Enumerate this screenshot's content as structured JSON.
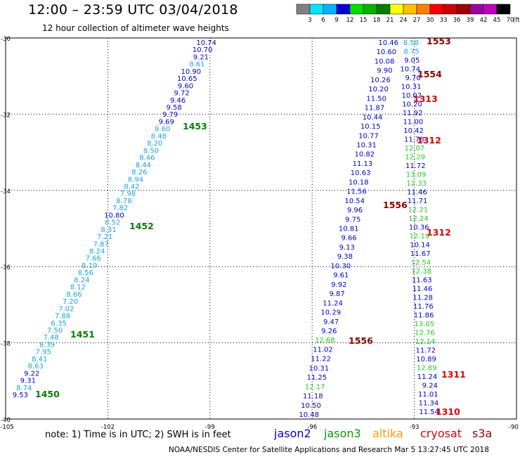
{
  "header": {
    "title": "12:00 – 23:59 UTC 03/04/2018",
    "subtitle": "12 hour collection of altimeter wave heights"
  },
  "colorbar": {
    "labels": [
      "3",
      "6",
      "9",
      "12",
      "15",
      "18",
      "21",
      "24",
      "27",
      "30",
      "33",
      "36",
      "39",
      "42",
      "45",
      "70",
      "(ft)"
    ],
    "colors": [
      "#808080",
      "#00e5ff",
      "#00b4ff",
      "#0000e0",
      "#00e000",
      "#00b400",
      "#008000",
      "#ffff00",
      "#ffc000",
      "#ff8000",
      "#ff0000",
      "#d00000",
      "#a00000",
      "#a000a0",
      "#c000c0",
      "#000000"
    ]
  },
  "axes": {
    "y_ticks": [
      "-30",
      "-32",
      "-34",
      "-36",
      "-38",
      "-40"
    ],
    "x_ticks": [
      "-105",
      "-102",
      "-99",
      "-96",
      "-93",
      "-90"
    ]
  },
  "tracks": [
    {
      "name": "left-track",
      "values": [
        "10.74",
        "10.70",
        "9.21",
        "8.61",
        "10.90",
        "10.65",
        "9.60",
        "9.72",
        "9.46",
        "9.58",
        "9.79",
        "9.69",
        "8.60",
        "8.48",
        "8.20",
        "8.50",
        "8.46",
        "8.44",
        "8.26",
        "8.94",
        "8.42",
        "7.98",
        "8.78",
        "7.82",
        "10.80",
        "8.52",
        "8.31",
        "7.21",
        "7.87",
        "8.24",
        "7.66",
        "8.19",
        "8.56",
        "8.24",
        "8.12",
        "8.66",
        "7.20",
        "7.02",
        "7.88",
        "6.35",
        "7.50",
        "7.48",
        "8.39",
        "7.95",
        "8.41",
        "8.63",
        "9.22",
        "9.31",
        "8.74",
        "9.53"
      ]
    },
    {
      "name": "middle-track",
      "values": [
        "10.46",
        "10.60",
        "10.08",
        "9.90",
        "10.26",
        "10.20",
        "11.50",
        "11.87",
        "10.44",
        "10.15",
        "10.77",
        "10.31",
        "10.82",
        "11.13",
        "10.63",
        "10.18",
        "11.56",
        "10.54",
        "9.96",
        "9.75",
        "10.81",
        "9.66",
        "9.13",
        "9.38",
        "10.30",
        "9.61",
        "9.92",
        "9.87",
        "11.24",
        "10.29",
        "9.47",
        "9.26",
        "12.68",
        "11.02",
        "11.22",
        "10.31",
        "11.25",
        "12.17",
        "11.18",
        "10.50",
        "10.48"
      ]
    },
    {
      "name": "right-track",
      "values": [
        "8.58",
        "8.75",
        "9.05",
        "10.74",
        "9.70",
        "10.31",
        "10.02",
        "10.20",
        "11.92",
        "11.00",
        "10.42",
        "11.78",
        "12.07",
        "12.29",
        "11.72",
        "13.09",
        "12.33",
        "11.46",
        "11.71",
        "12.21",
        "12.24",
        "10.36",
        "12.19",
        "10.14",
        "11.67",
        "12.54",
        "12.38",
        "11.63",
        "11.46",
        "11.28",
        "11.76",
        "11.86",
        "13.05",
        "12.76",
        "12.14",
        "11.72",
        "10.89",
        "12.89",
        "11.24",
        "9.24",
        "11.01",
        "11.34",
        "11.54"
      ]
    }
  ],
  "pass_times": [
    "1553",
    "1554",
    "1313",
    "1312",
    "1312",
    "1556",
    "1556",
    "1311",
    "1310",
    "1453",
    "1452",
    "1451",
    "1450"
  ],
  "footer": {
    "note": "note:  1) Time is in UTC; 2) SWH is in feet",
    "legend": [
      "jason2",
      "jason3",
      "altika",
      "cryosat",
      "s3a"
    ],
    "legend_colors": [
      "#0000e0",
      "#00a000",
      "#ff9900",
      "#e00000",
      "#a00000"
    ],
    "credit": "NOAA/NESDIS Center for Satellite Applications and Research      Mar  5 13:27:45 UTC 2018"
  }
}
